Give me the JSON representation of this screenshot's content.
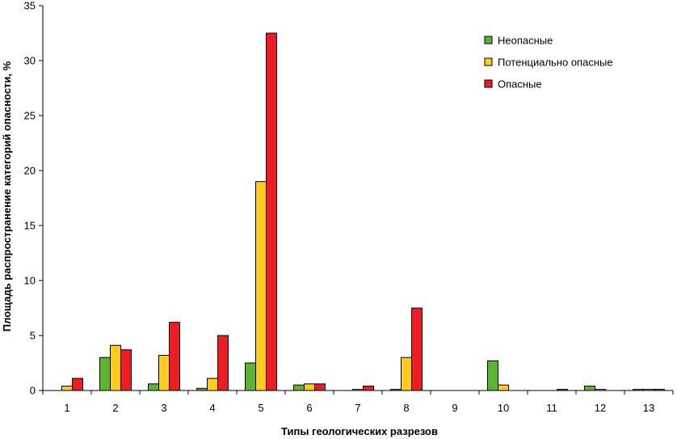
{
  "chart_data": {
    "type": "bar",
    "title": "",
    "xlabel": "Типы геологических разрезов",
    "ylabel": "Площадь распространение категорий опасности, %",
    "ylim": [
      0,
      35
    ],
    "yticks": [
      "0",
      "5",
      "10",
      "15",
      "20",
      "25",
      "30",
      "35"
    ],
    "categories": [
      "1",
      "2",
      "3",
      "4",
      "5",
      "6",
      "7",
      "8",
      "9",
      "10",
      "11",
      "12",
      "13"
    ],
    "grid": false,
    "legend_position": "top-right",
    "series": [
      {
        "name": "Неопасные",
        "color": "#5cb531",
        "values": [
          0,
          3.0,
          0.6,
          0.2,
          2.5,
          0.5,
          0,
          0.1,
          0,
          2.7,
          0,
          0.4,
          0.1
        ]
      },
      {
        "name": "Потенциально опасные",
        "color": "#ffcc1a",
        "values": [
          0.4,
          4.1,
          3.2,
          1.1,
          19.0,
          0.6,
          0.1,
          3.0,
          0,
          0.5,
          0,
          0.1,
          0.1
        ]
      },
      {
        "name": "Опасные",
        "color": "#ee1c24",
        "values": [
          1.1,
          3.7,
          6.2,
          5.0,
          32.5,
          0.6,
          0.4,
          7.5,
          0,
          0,
          0.1,
          0,
          0.1
        ]
      }
    ]
  }
}
